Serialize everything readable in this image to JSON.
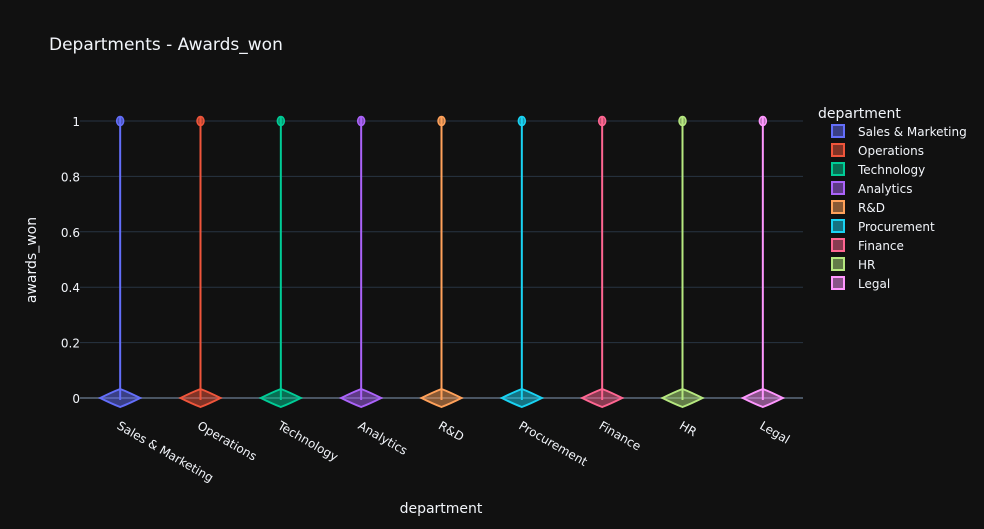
{
  "chart_data": {
    "type": "violin",
    "title": "Departments - Awards_won",
    "xlabel": "department",
    "ylabel": "awards_won",
    "ylim": [
      0,
      1
    ],
    "yticks": [
      0,
      0.2,
      0.4,
      0.6,
      0.8,
      1
    ],
    "ytick_labels": [
      "0",
      "0.2",
      "0.4",
      "0.6",
      "0.8",
      "1"
    ],
    "legend_title": "department",
    "legend_position": "top-right",
    "grid": true,
    "categories": [
      "Sales & Marketing",
      "Operations",
      "Technology",
      "Analytics",
      "R&D",
      "Procurement",
      "Finance",
      "HR",
      "Legal"
    ],
    "series": [
      {
        "name": "Sales & Marketing",
        "color": "#636efa",
        "values": [
          0,
          1
        ]
      },
      {
        "name": "Operations",
        "color": "#EF553B",
        "values": [
          0,
          1
        ]
      },
      {
        "name": "Technology",
        "color": "#00cc96",
        "values": [
          0,
          1
        ]
      },
      {
        "name": "Analytics",
        "color": "#ab63fa",
        "values": [
          0,
          1
        ]
      },
      {
        "name": "R&D",
        "color": "#FFA15A",
        "values": [
          0,
          1
        ]
      },
      {
        "name": "Procurement",
        "color": "#19d3f3",
        "values": [
          0,
          1
        ]
      },
      {
        "name": "Finance",
        "color": "#FF6692",
        "values": [
          0,
          1
        ]
      },
      {
        "name": "HR",
        "color": "#B6E880",
        "values": [
          0,
          1
        ]
      },
      {
        "name": "Legal",
        "color": "#FF97FF",
        "values": [
          0,
          1
        ]
      }
    ]
  }
}
